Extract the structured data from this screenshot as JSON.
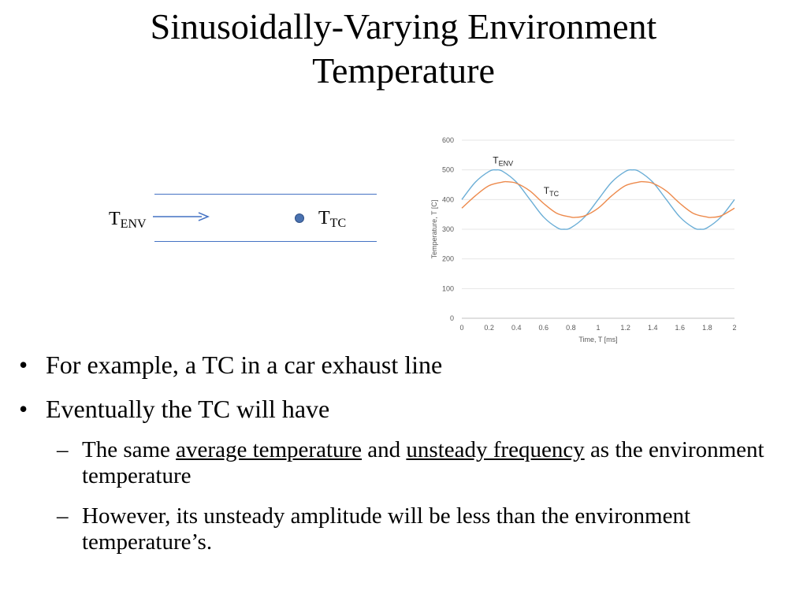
{
  "slide": {
    "title_line1": "Sinusoidally-Varying Environment",
    "title_line2": "Temperature"
  },
  "schematic": {
    "env_symbol": "T",
    "env_subscript": "ENV",
    "tc_symbol": "T",
    "tc_subscript": "TC"
  },
  "chart_data": {
    "type": "line",
    "xlabel": "Time, T [ms]",
    "ylabel": "Temperature, T [C]",
    "xlim": [
      0,
      2
    ],
    "ylim": [
      0,
      600
    ],
    "x_ticks": [
      "0",
      "0.2",
      "0.4",
      "0.6",
      "0.8",
      "1",
      "1.2",
      "1.4",
      "1.6",
      "1.8",
      "2"
    ],
    "y_ticks": [
      "0",
      "100",
      "200",
      "300",
      "400",
      "500",
      "600"
    ],
    "grid": "horizontal",
    "series": [
      {
        "name_symbol": "T",
        "name_subscript": "ENV",
        "color": "#6baed6",
        "x": [
          0,
          0.1,
          0.2,
          0.25,
          0.3,
          0.4,
          0.5,
          0.6,
          0.7,
          0.75,
          0.8,
          0.9,
          1.0,
          1.1,
          1.2,
          1.25,
          1.3,
          1.4,
          1.5,
          1.6,
          1.7,
          1.75,
          1.8,
          1.9,
          2.0
        ],
        "y": [
          400,
          459,
          495,
          500,
          495,
          459,
          400,
          341,
          305,
          300,
          305,
          341,
          400,
          459,
          495,
          500,
          495,
          459,
          400,
          341,
          305,
          300,
          305,
          341,
          400
        ]
      },
      {
        "name_symbol": "T",
        "name_subscript": "TC",
        "color": "#ed8a4c",
        "x": [
          0,
          0.1,
          0.2,
          0.3,
          0.33,
          0.4,
          0.5,
          0.6,
          0.7,
          0.8,
          0.83,
          0.9,
          1.0,
          1.1,
          1.2,
          1.3,
          1.33,
          1.4,
          1.5,
          1.6,
          1.7,
          1.8,
          1.83,
          1.9,
          2.0
        ],
        "y": [
          371,
          413,
          447,
          459,
          460,
          455,
          429,
          387,
          353,
          341,
          340,
          345,
          371,
          413,
          447,
          459,
          460,
          455,
          429,
          387,
          353,
          341,
          340,
          345,
          371
        ]
      }
    ]
  },
  "bullets": {
    "b1": "For example, a TC in a car exhaust line",
    "b2": "Eventually the TC will have",
    "sub1_part1": "The same ",
    "sub1_u1": "average temperature",
    "sub1_part2": " and ",
    "sub1_u2": "unsteady frequency",
    "sub1_part3": " as the environment temperature",
    "sub2": "However, its unsteady amplitude will be less than the environment temperature’s.",
    "marker_main": "•",
    "marker_sub": "–"
  }
}
